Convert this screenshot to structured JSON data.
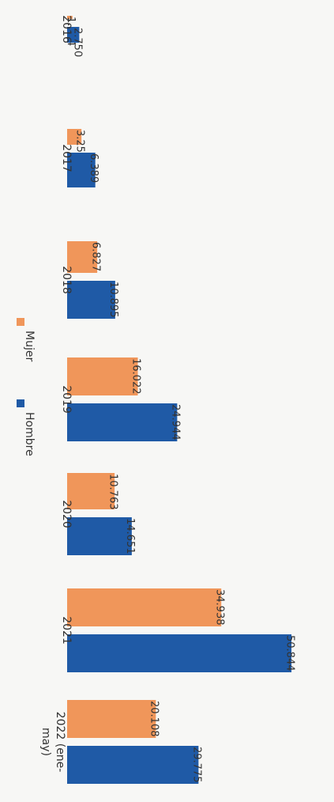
{
  "chart_data": {
    "type": "bar",
    "orientation": "horizontal, page rotated 90° clockwise",
    "categories": [
      "2016",
      "2017",
      "2018",
      "2019",
      "2020",
      "2021",
      "2022 (ene-may)"
    ],
    "series": [
      {
        "name": "Mujer",
        "color": "#f0965a",
        "values": [
          1204,
          3253,
          6827,
          16022,
          10763,
          34938,
          20108
        ],
        "labels": [
          "1.204",
          "3.253",
          "6.827",
          "16.022",
          "10.763",
          "34.938",
          "20.108"
        ]
      },
      {
        "name": "Hombre",
        "color": "#1f5aa6",
        "values": [
          2750,
          6389,
          10895,
          24944,
          14651,
          50844,
          29775
        ],
        "labels": [
          "2.750",
          "6.389",
          "10.895",
          "24.944",
          "14.651",
          "50.844",
          "29.775"
        ]
      }
    ],
    "legend": {
      "position": "left",
      "entries": [
        "Mujer",
        "Hombre"
      ]
    },
    "grid": false
  }
}
